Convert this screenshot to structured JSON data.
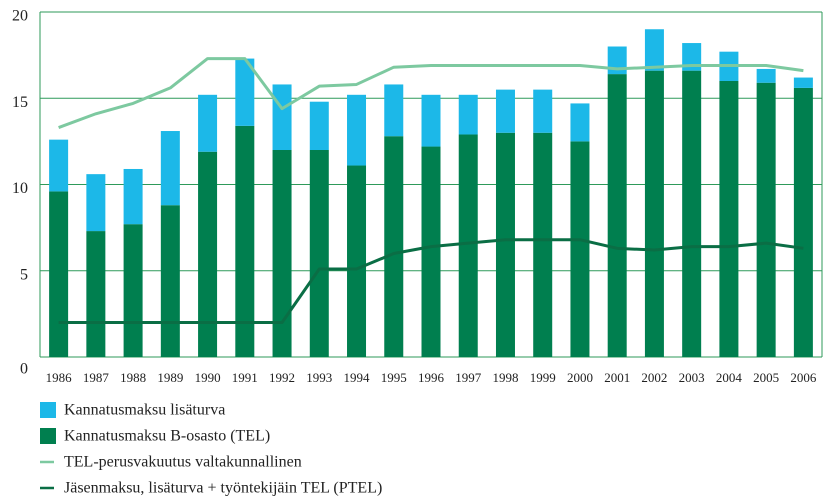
{
  "chart_data": {
    "type": "bar",
    "stacked": true,
    "categories": [
      "1986",
      "1987",
      "1988",
      "1989",
      "1990",
      "1991",
      "1992",
      "1993",
      "1994",
      "1995",
      "1996",
      "1997",
      "1998",
      "1999",
      "2000",
      "2001",
      "2002",
      "2003",
      "2004",
      "2005",
      "2006"
    ],
    "series": [
      {
        "name": "Kannatusmaksu lisäturva",
        "type": "bar",
        "color": "#1cb8e8",
        "stack": 1,
        "values": [
          3.0,
          3.3,
          3.2,
          4.3,
          3.3,
          3.9,
          3.8,
          2.8,
          4.1,
          3.0,
          3.0,
          2.3,
          2.5,
          2.5,
          2.2,
          1.6,
          2.4,
          1.6,
          1.7,
          0.8,
          0.6
        ]
      },
      {
        "name": "Kannatusmaksu B-osasto (TEL)",
        "type": "bar",
        "color": "#007f4f",
        "stack": 0,
        "values": [
          9.6,
          7.3,
          7.7,
          8.8,
          11.9,
          13.4,
          12.0,
          12.0,
          11.1,
          12.8,
          12.2,
          12.9,
          13.0,
          13.0,
          12.5,
          16.4,
          16.6,
          16.6,
          16.0,
          15.9,
          15.6
        ]
      },
      {
        "name": "TEL-perusvakuutus valtakunnallinen",
        "type": "line",
        "color": "#7dc9a0",
        "values": [
          13.3,
          14.1,
          14.7,
          15.6,
          17.3,
          17.3,
          14.4,
          15.7,
          15.8,
          16.8,
          16.9,
          16.9,
          16.9,
          16.9,
          16.9,
          16.7,
          16.8,
          16.9,
          16.9,
          16.9,
          16.6
        ]
      },
      {
        "name": "Jäsenmaksu, lisäturva + työntekijäin TEL (PTEL)",
        "type": "line",
        "color": "#0a6e45",
        "values": [
          2.0,
          2.0,
          2.0,
          2.0,
          2.0,
          2.0,
          2.0,
          5.1,
          5.1,
          6.0,
          6.4,
          6.6,
          6.8,
          6.8,
          6.8,
          6.3,
          6.2,
          6.4,
          6.4,
          6.6,
          6.3
        ]
      }
    ],
    "ylim": [
      0,
      20
    ],
    "yticks": [
      0,
      5,
      10,
      15,
      20
    ],
    "grid": true
  }
}
